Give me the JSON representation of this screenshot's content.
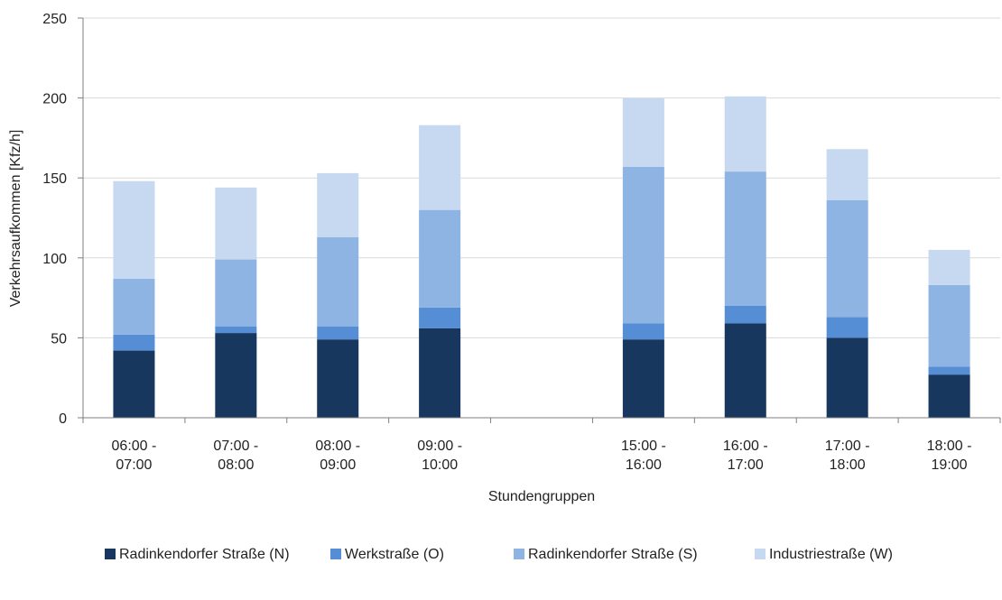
{
  "chart_data": {
    "type": "bar",
    "stacked": true,
    "xlabel": "Stundengruppen",
    "ylabel": "Verkehrsaufkommen [Kfz/h]",
    "ylim": [
      0,
      250
    ],
    "yticks": [
      0,
      50,
      100,
      150,
      200,
      250
    ],
    "grid": true,
    "legend_position": "bottom",
    "categories": [
      [
        "06:00 -",
        "07:00"
      ],
      [
        "07:00 -",
        "08:00"
      ],
      [
        "08:00 -",
        "09:00"
      ],
      [
        "09:00 -",
        "10:00"
      ],
      [
        "",
        ""
      ],
      [
        "15:00 -",
        "16:00"
      ],
      [
        "16:00 -",
        "17:00"
      ],
      [
        "17:00 -",
        "18:00"
      ],
      [
        "18:00 -",
        "19:00"
      ]
    ],
    "series": [
      {
        "name": "Radinkendorfer Straße (N)",
        "color": "#17375e",
        "values": [
          42,
          53,
          49,
          56,
          null,
          49,
          59,
          50,
          27
        ]
      },
      {
        "name": "Werkstraße (O)",
        "color": "#558ed5",
        "values": [
          10,
          4,
          8,
          13,
          null,
          10,
          11,
          13,
          5
        ]
      },
      {
        "name": "Radinkendorfer Straße (S)",
        "color": "#8eb4e3",
        "values": [
          35,
          42,
          56,
          61,
          null,
          98,
          84,
          73,
          51
        ]
      },
      {
        "name": "Industriestraße (W)",
        "color": "#c6d9f1",
        "values": [
          61,
          45,
          40,
          53,
          null,
          43,
          47,
          32,
          22
        ]
      }
    ],
    "colors": {
      "axis": "#7f7f7f",
      "grid": "#d9d9d9",
      "text": "#222222"
    }
  }
}
